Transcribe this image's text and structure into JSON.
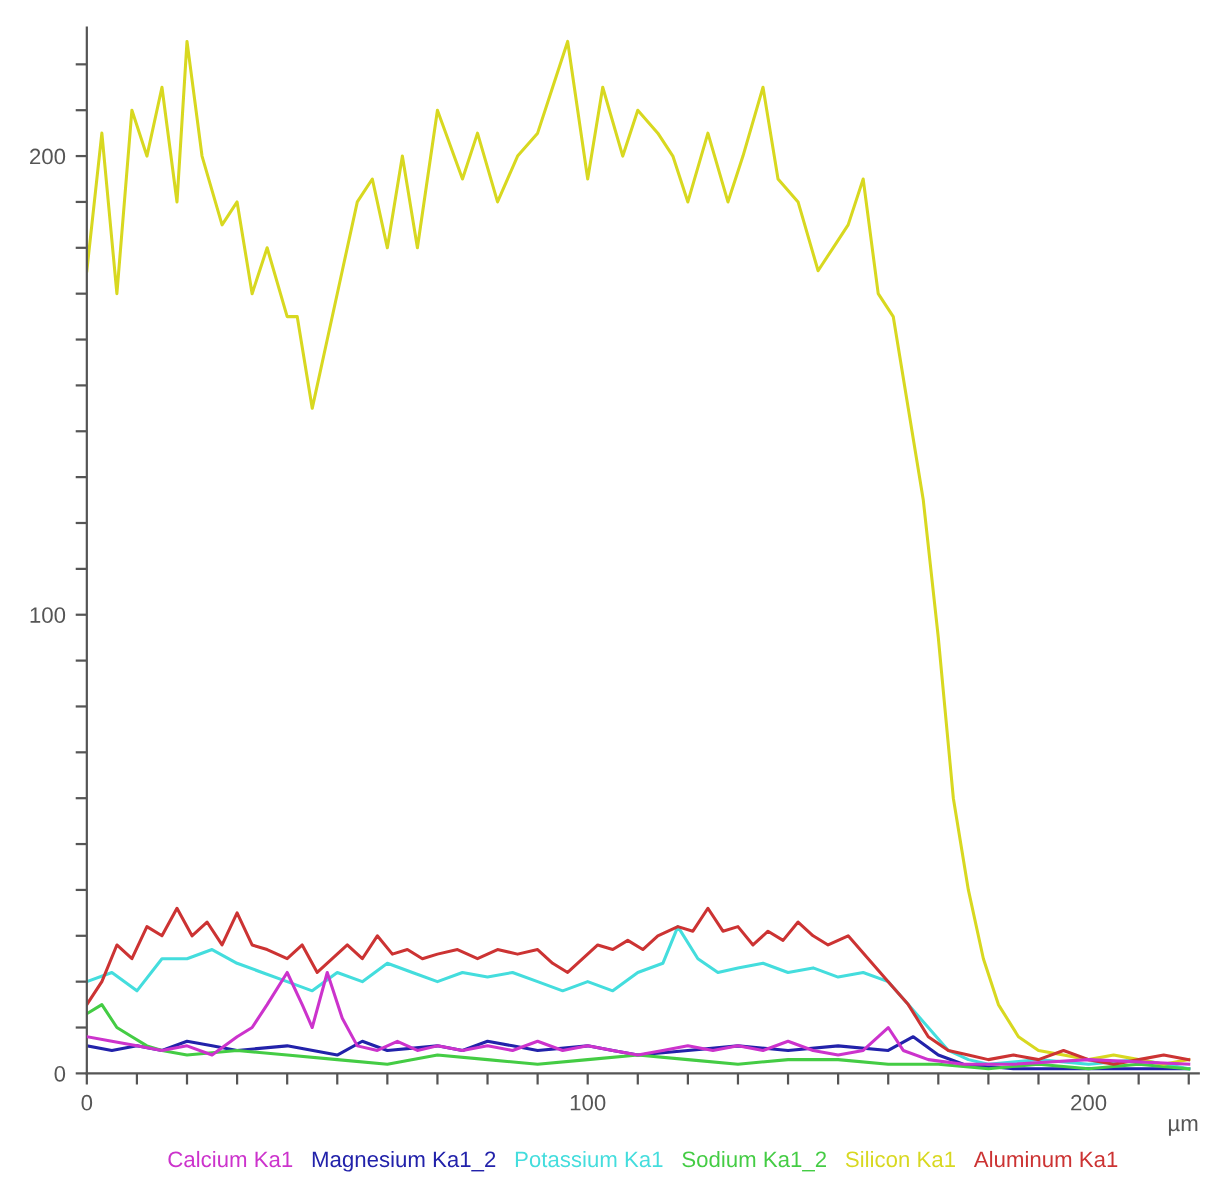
{
  "chart_data": {
    "type": "line",
    "xlabel": "µm",
    "xlim": [
      0,
      222
    ],
    "ylim": [
      0,
      228
    ],
    "xticks": [
      0,
      {
        "value": 10,
        "label": null
      },
      {
        "value": 20,
        "label": null
      },
      {
        "value": 30,
        "label": null
      },
      {
        "value": 40,
        "label": null
      },
      {
        "value": 50,
        "label": null
      },
      {
        "value": 60,
        "label": null
      },
      {
        "value": 70,
        "label": null
      },
      {
        "value": 80,
        "label": null
      },
      {
        "value": 90,
        "label": null
      },
      100,
      {
        "value": 110,
        "label": null
      },
      {
        "value": 120,
        "label": null
      },
      {
        "value": 130,
        "label": null
      },
      {
        "value": 140,
        "label": null
      },
      {
        "value": 150,
        "label": null
      },
      {
        "value": 160,
        "label": null
      },
      {
        "value": 170,
        "label": null
      },
      {
        "value": 180,
        "label": null
      },
      {
        "value": 190,
        "label": null
      },
      200,
      {
        "value": 210,
        "label": null
      },
      {
        "value": 220,
        "label": null
      }
    ],
    "yticks": [
      0,
      {
        "value": 10,
        "label": null
      },
      {
        "value": 20,
        "label": null
      },
      {
        "value": 30,
        "label": null
      },
      {
        "value": 40,
        "label": null
      },
      {
        "value": 50,
        "label": null
      },
      {
        "value": 60,
        "label": null
      },
      {
        "value": 70,
        "label": null
      },
      {
        "value": 80,
        "label": null
      },
      {
        "value": 90,
        "label": null
      },
      100,
      {
        "value": 110,
        "label": null
      },
      {
        "value": 120,
        "label": null
      },
      {
        "value": 130,
        "label": null
      },
      {
        "value": 140,
        "label": null
      },
      {
        "value": 150,
        "label": null
      },
      {
        "value": 160,
        "label": null
      },
      {
        "value": 170,
        "label": null
      },
      {
        "value": 180,
        "label": null
      },
      {
        "value": 190,
        "label": null
      },
      200,
      {
        "value": 210,
        "label": null
      },
      {
        "value": 220,
        "label": null
      }
    ],
    "grid": false,
    "legend": "bottom",
    "marker": "none",
    "line_style": "solid",
    "series": [
      {
        "name": "Calcium Ka1",
        "color": "#cc33cc",
        "x": [
          0,
          5,
          10,
          15,
          20,
          25,
          30,
          33,
          36,
          40,
          43,
          45,
          48,
          51,
          54,
          58,
          62,
          66,
          70,
          75,
          80,
          85,
          90,
          95,
          100,
          105,
          110,
          115,
          120,
          125,
          130,
          135,
          140,
          145,
          150,
          155,
          160,
          163,
          168,
          175,
          185,
          200,
          220
        ],
        "values": [
          8,
          7,
          6,
          5,
          6,
          4,
          8,
          10,
          15,
          22,
          15,
          10,
          22,
          12,
          6,
          5,
          7,
          5,
          6,
          5,
          6,
          5,
          7,
          5,
          6,
          5,
          4,
          5,
          6,
          5,
          6,
          5,
          7,
          5,
          4,
          5,
          10,
          5,
          3,
          2,
          2,
          3,
          2
        ]
      },
      {
        "name": "Magnesium Ka1_2",
        "color": "#2222aa",
        "x": [
          0,
          5,
          10,
          15,
          20,
          25,
          30,
          40,
          50,
          55,
          60,
          70,
          75,
          80,
          85,
          90,
          100,
          105,
          110,
          120,
          130,
          140,
          150,
          160,
          165,
          170,
          175,
          185,
          200,
          220
        ],
        "values": [
          6,
          5,
          6,
          5,
          7,
          6,
          5,
          6,
          4,
          7,
          5,
          6,
          5,
          7,
          6,
          5,
          6,
          5,
          4,
          5,
          6,
          5,
          6,
          5,
          8,
          4,
          2,
          1,
          1,
          1
        ]
      },
      {
        "name": "Potassium Ka1",
        "color": "#44dddd",
        "x": [
          0,
          5,
          10,
          15,
          20,
          25,
          30,
          35,
          40,
          45,
          50,
          55,
          60,
          65,
          70,
          75,
          80,
          85,
          90,
          95,
          100,
          105,
          110,
          115,
          118,
          122,
          126,
          130,
          135,
          140,
          145,
          150,
          155,
          160,
          164,
          168,
          172,
          176,
          180,
          190,
          200,
          210,
          220
        ],
        "values": [
          20,
          22,
          18,
          25,
          25,
          27,
          24,
          22,
          20,
          18,
          22,
          20,
          24,
          22,
          20,
          22,
          21,
          22,
          20,
          18,
          20,
          18,
          22,
          24,
          32,
          25,
          22,
          23,
          24,
          22,
          23,
          21,
          22,
          20,
          15,
          10,
          5,
          3,
          2,
          3,
          2,
          3,
          1
        ]
      },
      {
        "name": "Sodium Ka1_2",
        "color": "#44cc44",
        "x": [
          0,
          3,
          6,
          9,
          12,
          15,
          20,
          30,
          40,
          50,
          60,
          70,
          80,
          90,
          100,
          110,
          120,
          130,
          140,
          150,
          160,
          170,
          180,
          190,
          200,
          210,
          220
        ],
        "values": [
          13,
          15,
          10,
          8,
          6,
          5,
          4,
          5,
          4,
          3,
          2,
          4,
          3,
          2,
          3,
          4,
          3,
          2,
          3,
          3,
          2,
          2,
          1,
          2,
          1,
          2,
          1
        ]
      },
      {
        "name": "Silicon Ka1",
        "color": "#d8d820",
        "x": [
          0,
          3,
          6,
          9,
          12,
          15,
          18,
          20,
          23,
          27,
          30,
          33,
          36,
          40,
          42,
          45,
          48,
          51,
          54,
          57,
          60,
          63,
          66,
          70,
          75,
          78,
          82,
          86,
          90,
          93,
          96,
          100,
          103,
          107,
          110,
          114,
          117,
          120,
          124,
          128,
          131,
          135,
          138,
          142,
          146,
          149,
          152,
          155,
          158,
          161,
          164,
          167,
          170,
          173,
          176,
          179,
          182,
          186,
          190,
          195,
          200,
          205,
          210,
          215,
          220
        ],
        "values": [
          175,
          205,
          170,
          210,
          200,
          215,
          190,
          225,
          200,
          185,
          190,
          170,
          180,
          165,
          165,
          145,
          160,
          175,
          190,
          195,
          180,
          200,
          180,
          210,
          195,
          205,
          190,
          200,
          205,
          215,
          225,
          195,
          215,
          200,
          210,
          205,
          200,
          190,
          205,
          190,
          200,
          215,
          195,
          190,
          175,
          180,
          185,
          195,
          170,
          165,
          145,
          125,
          95,
          60,
          40,
          25,
          15,
          8,
          5,
          4,
          3,
          4,
          3,
          2,
          3
        ]
      },
      {
        "name": "Aluminum Ka1",
        "color": "#cc3333",
        "x": [
          0,
          3,
          6,
          9,
          12,
          15,
          18,
          21,
          24,
          27,
          30,
          33,
          36,
          40,
          43,
          46,
          49,
          52,
          55,
          58,
          61,
          64,
          67,
          70,
          74,
          78,
          82,
          86,
          90,
          93,
          96,
          99,
          102,
          105,
          108,
          111,
          114,
          118,
          121,
          124,
          127,
          130,
          133,
          136,
          139,
          142,
          145,
          148,
          152,
          156,
          160,
          164,
          168,
          172,
          176,
          180,
          185,
          190,
          195,
          200,
          205,
          210,
          215,
          220
        ],
        "values": [
          15,
          20,
          28,
          25,
          32,
          30,
          36,
          30,
          33,
          28,
          35,
          28,
          27,
          25,
          28,
          22,
          25,
          28,
          25,
          30,
          26,
          27,
          25,
          26,
          27,
          25,
          27,
          26,
          27,
          24,
          22,
          25,
          28,
          27,
          29,
          27,
          30,
          32,
          31,
          36,
          31,
          32,
          28,
          31,
          29,
          33,
          30,
          28,
          30,
          25,
          20,
          15,
          8,
          5,
          4,
          3,
          4,
          3,
          5,
          3,
          2,
          3,
          4,
          3
        ]
      }
    ]
  }
}
